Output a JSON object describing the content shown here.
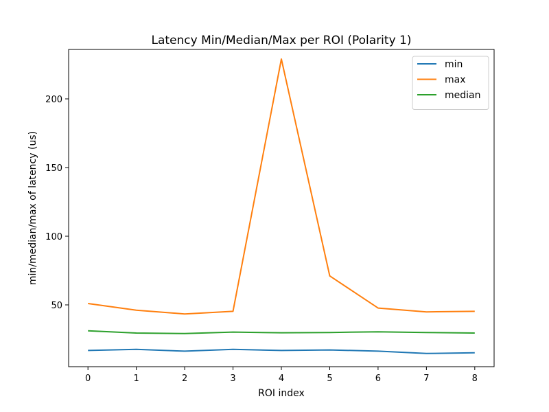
{
  "chart_data": {
    "type": "line",
    "title": "Latency Min/Median/Max per ROI (Polarity 1)",
    "xlabel": "ROI index",
    "ylabel": "min/median/max of latency (us)",
    "x": [
      0,
      1,
      2,
      3,
      4,
      5,
      6,
      7,
      8
    ],
    "xticks": [
      0,
      1,
      2,
      3,
      4,
      5,
      6,
      7,
      8
    ],
    "yticks": [
      50,
      100,
      150,
      200
    ],
    "xlim": [
      -0.4,
      8.4
    ],
    "ylim": [
      5,
      236
    ],
    "grid": false,
    "legend_position": "top-right",
    "series": [
      {
        "name": "min",
        "color": "#1f77b4",
        "values": [
          16.8,
          17.6,
          16.3,
          17.6,
          16.8,
          17.2,
          16.3,
          14.6,
          15.1
        ]
      },
      {
        "name": "max",
        "color": "#ff7f0e",
        "values": [
          51.0,
          46.1,
          43.4,
          45.3,
          229.0,
          71.1,
          47.7,
          44.9,
          45.3
        ]
      },
      {
        "name": "median",
        "color": "#2ca02c",
        "values": [
          31.1,
          29.5,
          29.1,
          30.2,
          29.7,
          29.9,
          30.4,
          29.9,
          29.5
        ]
      }
    ]
  }
}
